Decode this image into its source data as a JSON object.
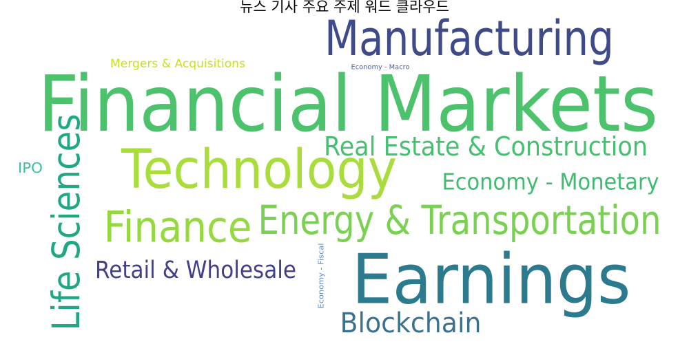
{
  "chart_data": {
    "type": "wordcloud",
    "title": "뉴스 기사 주요 주제 워드 클라우드",
    "words": [
      {
        "text": "Financial Markets",
        "weight": 100,
        "color": "#4cc26c"
      },
      {
        "text": "Earnings",
        "weight": 84,
        "color": "#2b7a8e"
      },
      {
        "text": "Technology",
        "weight": 68,
        "color": "#a8dd3c"
      },
      {
        "text": "Manufacturing",
        "weight": 64,
        "color": "#3e4a89"
      },
      {
        "text": "Life Sciences",
        "weight": 55,
        "color": "#22a785"
      },
      {
        "text": "Finance",
        "weight": 55,
        "color": "#95d840"
      },
      {
        "text": "Energy & Transportation",
        "weight": 50,
        "color": "#7ad151"
      },
      {
        "text": "Real Estate & Construction",
        "weight": 38,
        "color": "#45bf70"
      },
      {
        "text": "Blockchain",
        "weight": 38,
        "color": "#3b718d"
      },
      {
        "text": "Retail & Wholesale",
        "weight": 34,
        "color": "#424086"
      },
      {
        "text": "Economy - Monetary",
        "weight": 33,
        "color": "#40bc72"
      },
      {
        "text": "Mergers & Acquisitions",
        "weight": 18,
        "color": "#c9e020"
      },
      {
        "text": "IPO",
        "weight": 18,
        "color": "#3fbca0"
      },
      {
        "text": "Economy - Fiscal",
        "weight": 10,
        "color": "#5a8ebf"
      },
      {
        "text": "Economy - Macro",
        "weight": 9,
        "color": "#4e5f96"
      }
    ]
  }
}
